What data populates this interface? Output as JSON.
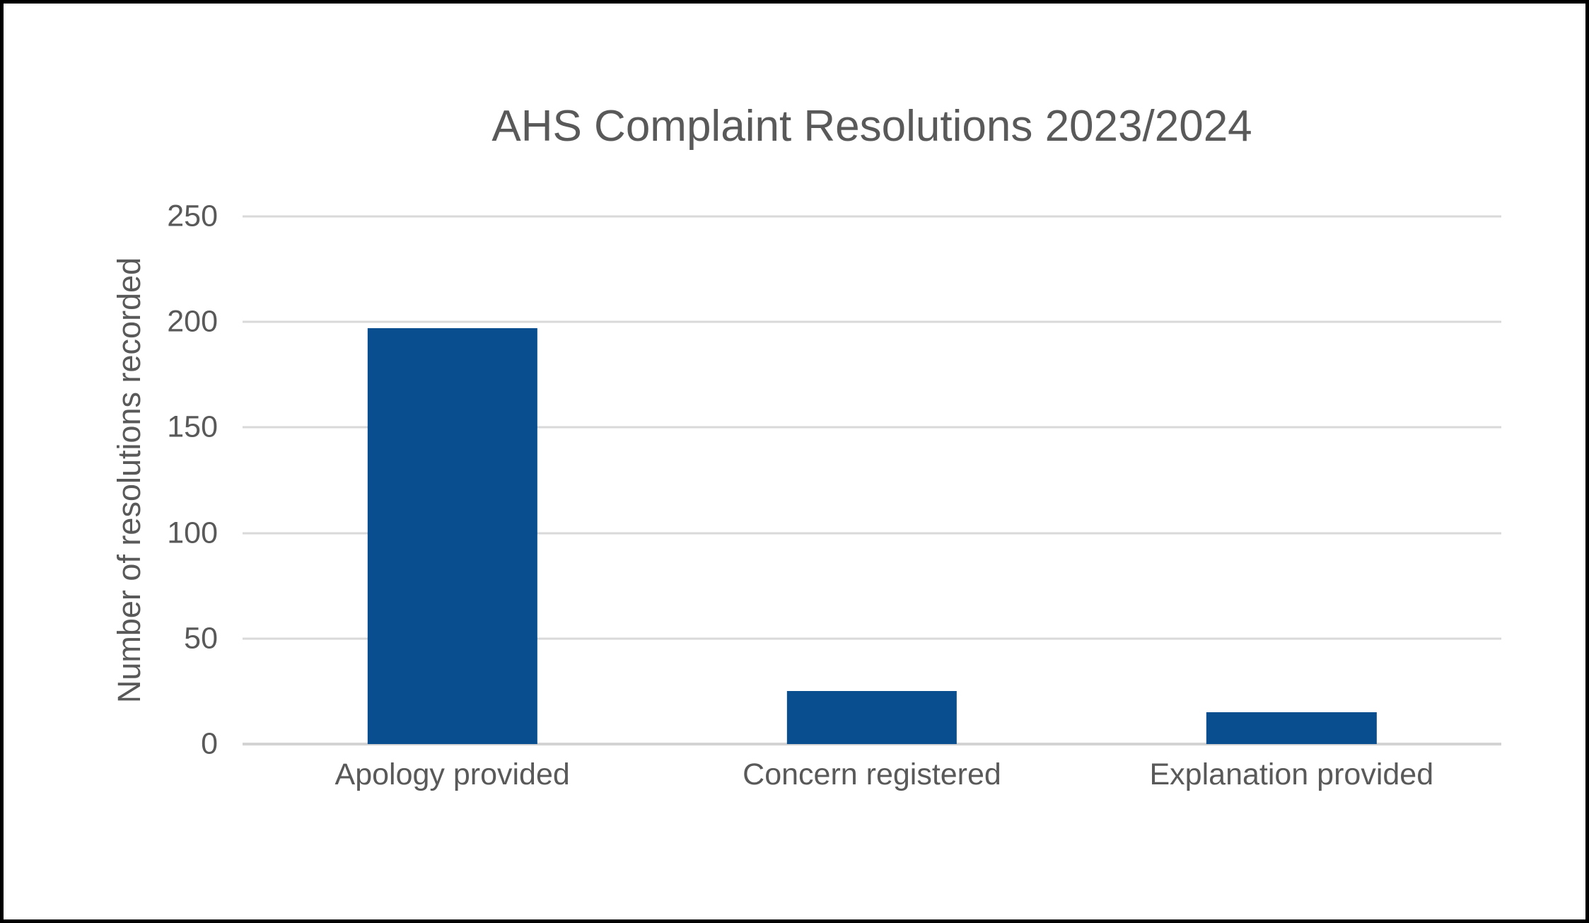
{
  "page": {
    "background": "#ffffff",
    "frame_border_color": "#000000"
  },
  "chart_data": {
    "type": "bar",
    "title": "AHS Complaint Resolutions 2023/2024",
    "categories": [
      "Apology provided",
      "Concern registered",
      "Explanation provided"
    ],
    "values": [
      197,
      25,
      15
    ],
    "xlabel": "",
    "ylabel": "Number of resolutions recorded",
    "ylim": [
      0,
      250
    ],
    "yticks": [
      0,
      50,
      100,
      150,
      200,
      250
    ],
    "grid": "horizontal",
    "legend": "none",
    "colors": {
      "bar": "#094f8f",
      "grid": "#d9d9d9",
      "grid_baseline": "#d3d3d3",
      "text": "#595959"
    }
  }
}
